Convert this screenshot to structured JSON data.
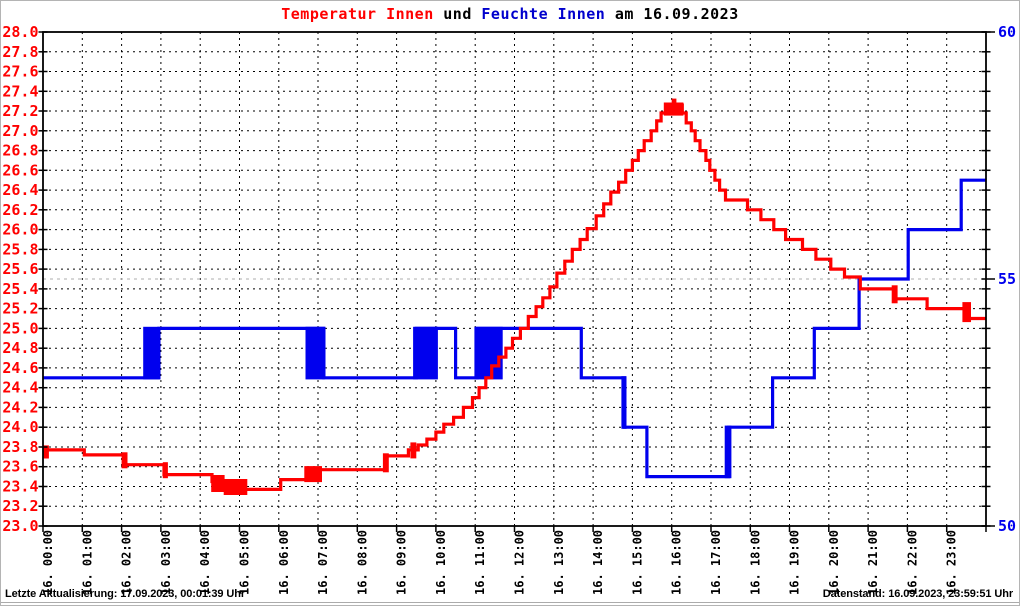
{
  "title": {
    "part_temperature": "Temperatur Innen",
    "part_und": " und ",
    "part_humidity": "Feuchte Innen",
    "part_date": " am 16.09.2023"
  },
  "footer": {
    "left": "Letzte Aktualisierung: 17.09.2023, 00:01:39 Uhr",
    "right": "Datenstand: 16.09.2023, 23:59:51 Uhr"
  },
  "colors": {
    "temperature": "#ff0000",
    "humidity": "#0000ee",
    "grid": "#000000",
    "humidity_mid_gridline": "#c8c8c8",
    "axis": "#000000",
    "x_label": "#000000"
  },
  "chart_data": {
    "type": "line",
    "title": "Temperatur Innen und Feuchte Innen am 16.09.2023",
    "xlabel": "",
    "ylabel_left": "",
    "ylabel_right": "",
    "grid": true,
    "x_axis": {
      "range_hours": [
        0,
        24
      ],
      "gridline_every_hours": 1,
      "labels": [
        "16. 00:00",
        "16. 01:00",
        "16. 02:00",
        "16. 03:00",
        "16. 04:00",
        "16. 05:00",
        "16. 06:00",
        "16. 07:00",
        "16. 08:00",
        "16. 09:00",
        "16. 10:00",
        "16. 11:00",
        "16. 12:00",
        "16. 13:00",
        "16. 14:00",
        "16. 15:00",
        "16. 16:00",
        "16. 17:00",
        "16. 18:00",
        "16. 19:00",
        "16. 20:00",
        "16. 21:00",
        "16. 22:00",
        "16. 23:00"
      ]
    },
    "left_axis": {
      "min": 23.0,
      "max": 28.0,
      "step": 0.2,
      "color": "#ff0000",
      "tick_labels": [
        "28.0",
        "27.8",
        "27.6",
        "27.4",
        "27.2",
        "27.0",
        "26.8",
        "26.6",
        "26.4",
        "26.2",
        "26.0",
        "25.8",
        "25.6",
        "25.4",
        "25.2",
        "25.0",
        "24.8",
        "24.6",
        "24.4",
        "24.2",
        "24.0",
        "23.8",
        "23.6",
        "23.4",
        "23.2",
        "23.0"
      ]
    },
    "right_axis": {
      "min": 50,
      "max": 60,
      "color": "#0000ee",
      "tick_values": [
        60,
        55,
        50
      ],
      "tick_labels": [
        "60",
        "55",
        "50"
      ],
      "mid_gridline_value": 55
    },
    "series": [
      {
        "name": "Feuchte Innen",
        "axis": "right",
        "color": "#0000ee",
        "mode": "step",
        "points": [
          [
            0,
            53
          ],
          [
            2.95,
            54
          ],
          [
            7.15,
            53
          ],
          [
            9.5,
            54
          ],
          [
            10.5,
            53
          ],
          [
            11.05,
            54
          ],
          [
            13.7,
            53
          ],
          [
            14.8,
            52
          ],
          [
            15.37,
            51
          ],
          [
            17.45,
            52
          ],
          [
            18.57,
            53
          ],
          [
            19.63,
            54
          ],
          [
            20.77,
            55
          ],
          [
            22.02,
            56
          ],
          [
            23.37,
            57
          ],
          [
            24,
            57
          ]
        ],
        "noise_bands": [
          [
            2.55,
            2.97,
            53,
            54
          ],
          [
            6.68,
            7.17,
            53,
            54
          ],
          [
            9.42,
            10.05,
            53,
            54
          ],
          [
            10.98,
            11.7,
            53,
            54
          ],
          [
            14.72,
            14.85,
            52,
            53
          ],
          [
            17.35,
            17.52,
            51,
            52
          ]
        ]
      },
      {
        "name": "Temperatur Innen",
        "axis": "left",
        "color": "#ff0000",
        "mode": "step",
        "points": [
          [
            0,
            23.77
          ],
          [
            1.05,
            23.72
          ],
          [
            2.07,
            23.62
          ],
          [
            3.08,
            23.52
          ],
          [
            4.3,
            23.45
          ],
          [
            4.6,
            23.4
          ],
          [
            4.85,
            23.37
          ],
          [
            6.05,
            23.47
          ],
          [
            7.05,
            23.57
          ],
          [
            8.72,
            23.71
          ],
          [
            9.3,
            23.77
          ],
          [
            9.55,
            23.82
          ],
          [
            9.77,
            23.88
          ],
          [
            10.0,
            23.95
          ],
          [
            10.2,
            24.03
          ],
          [
            10.45,
            24.1
          ],
          [
            10.7,
            24.2
          ],
          [
            10.93,
            24.3
          ],
          [
            11.1,
            24.4
          ],
          [
            11.27,
            24.5
          ],
          [
            11.42,
            24.62
          ],
          [
            11.6,
            24.71
          ],
          [
            11.78,
            24.8
          ],
          [
            11.95,
            24.9
          ],
          [
            12.15,
            25.0
          ],
          [
            12.35,
            25.12
          ],
          [
            12.55,
            25.22
          ],
          [
            12.72,
            25.31
          ],
          [
            12.9,
            25.42
          ],
          [
            13.08,
            25.56
          ],
          [
            13.28,
            25.68
          ],
          [
            13.47,
            25.8
          ],
          [
            13.67,
            25.9
          ],
          [
            13.85,
            26.01
          ],
          [
            14.08,
            26.14
          ],
          [
            14.27,
            26.26
          ],
          [
            14.45,
            26.38
          ],
          [
            14.65,
            26.48
          ],
          [
            14.83,
            26.6
          ],
          [
            15.0,
            26.7
          ],
          [
            15.15,
            26.8
          ],
          [
            15.3,
            26.9
          ],
          [
            15.48,
            27.0
          ],
          [
            15.62,
            27.1
          ],
          [
            15.73,
            27.18
          ],
          [
            15.9,
            27.26
          ],
          [
            16.27,
            27.18
          ],
          [
            16.37,
            27.08
          ],
          [
            16.5,
            27.0
          ],
          [
            16.6,
            26.9
          ],
          [
            16.72,
            26.8
          ],
          [
            16.87,
            26.7
          ],
          [
            16.97,
            26.6
          ],
          [
            17.1,
            26.5
          ],
          [
            17.22,
            26.4
          ],
          [
            17.37,
            26.3
          ],
          [
            17.93,
            26.2
          ],
          [
            18.27,
            26.1
          ],
          [
            18.6,
            26.0
          ],
          [
            18.9,
            25.9
          ],
          [
            19.33,
            25.8
          ],
          [
            19.67,
            25.7
          ],
          [
            20.05,
            25.6
          ],
          [
            20.4,
            25.52
          ],
          [
            20.8,
            25.4
          ],
          [
            21.67,
            25.3
          ],
          [
            22.5,
            25.2
          ],
          [
            23.57,
            25.1
          ],
          [
            24,
            25.1
          ]
        ],
        "noise_bands": [
          [
            0.0,
            0.15,
            23.7,
            23.8
          ],
          [
            2.0,
            2.15,
            23.6,
            23.73
          ],
          [
            3.05,
            3.18,
            23.5,
            23.63
          ],
          [
            4.28,
            4.62,
            23.36,
            23.5
          ],
          [
            4.6,
            5.2,
            23.33,
            23.46
          ],
          [
            6.65,
            7.1,
            23.46,
            23.59
          ],
          [
            8.65,
            8.8,
            23.56,
            23.72
          ],
          [
            9.35,
            9.5,
            23.7,
            23.83
          ],
          [
            15.8,
            16.3,
            27.17,
            27.27
          ],
          [
            16.0,
            16.12,
            27.2,
            27.31
          ],
          [
            21.6,
            21.75,
            25.27,
            25.42
          ],
          [
            23.4,
            23.62,
            25.08,
            25.25
          ]
        ]
      }
    ]
  }
}
